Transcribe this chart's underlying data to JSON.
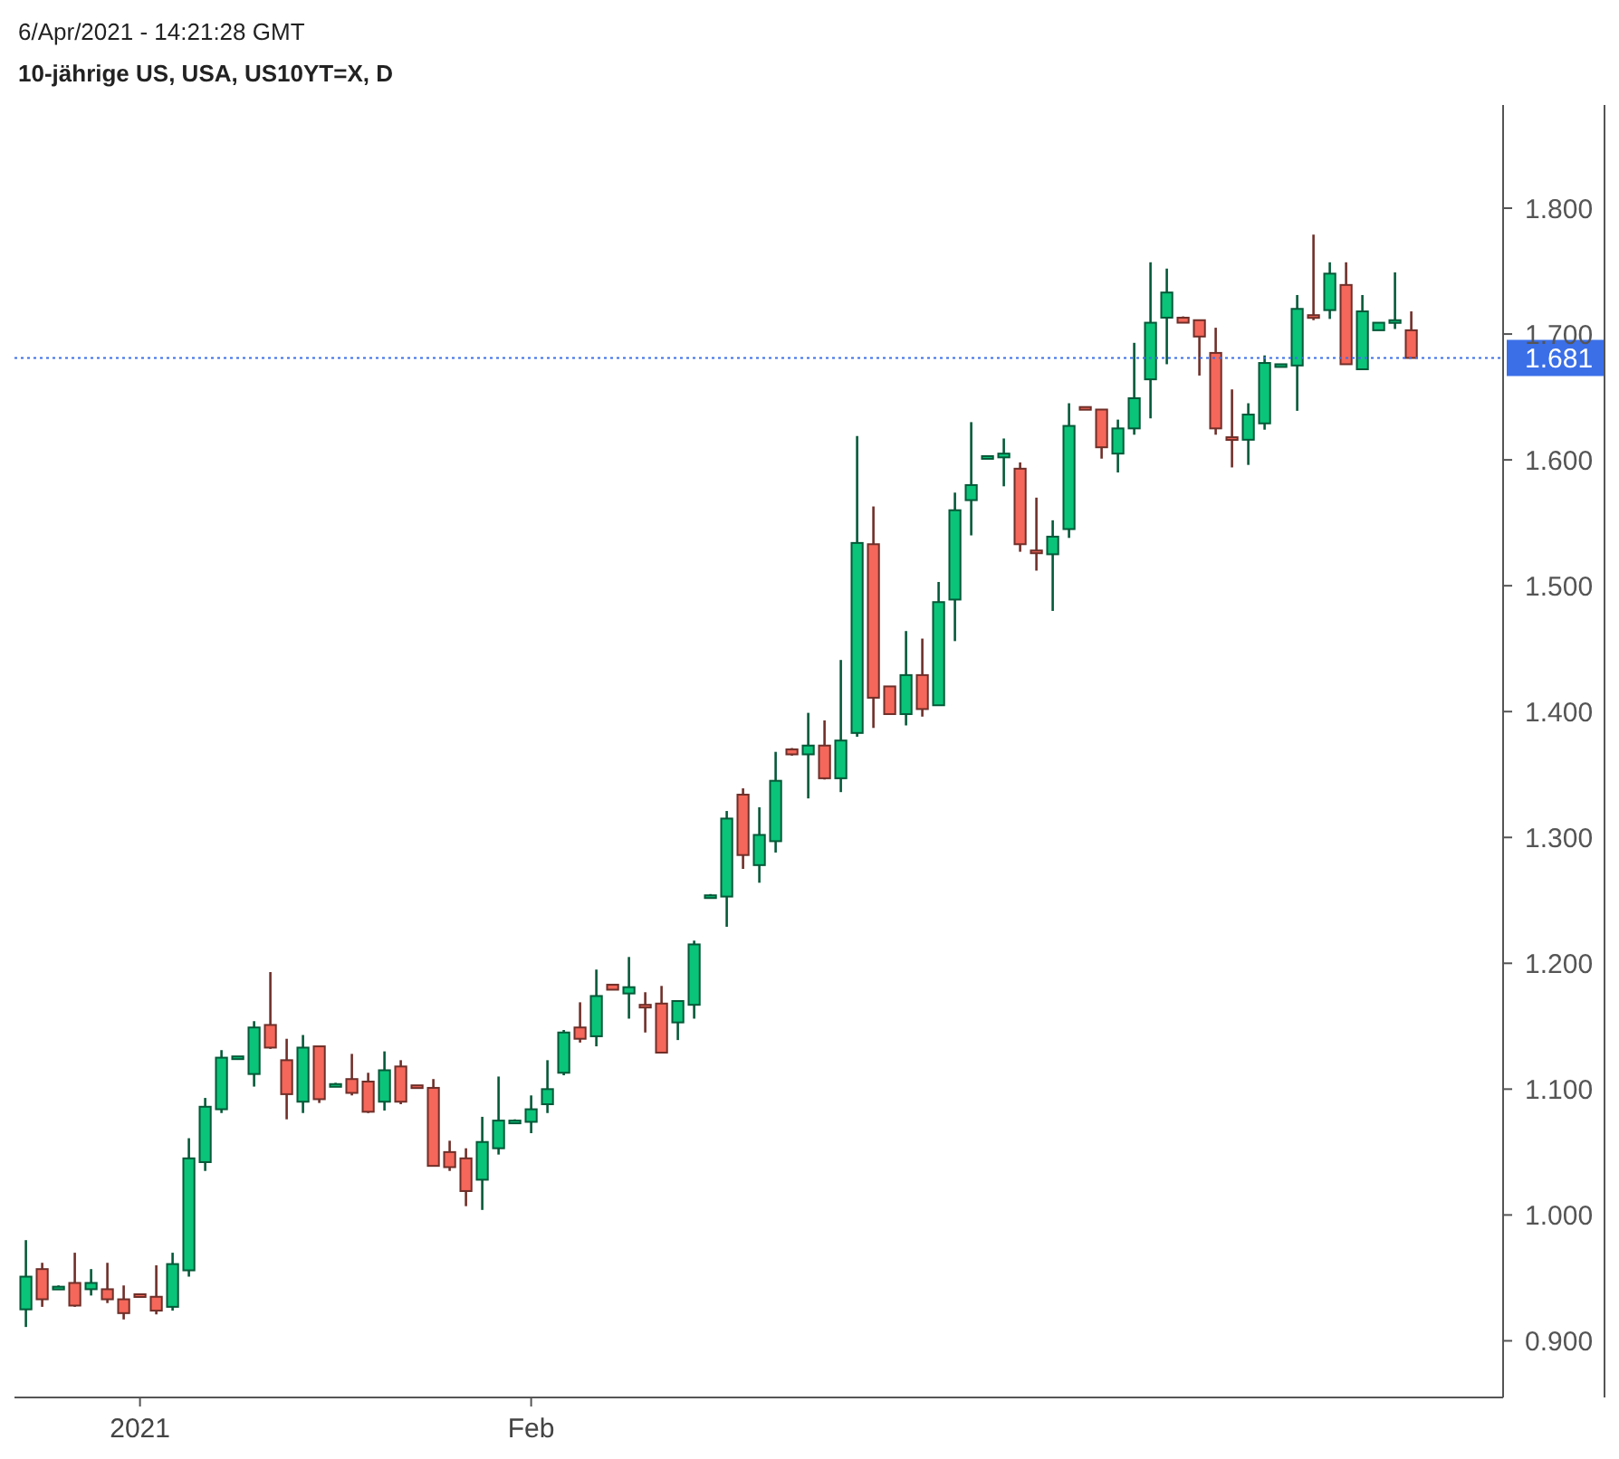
{
  "chart_data": {
    "type": "candlestick",
    "title": "10-jährige US, USA, US10YT=X, D",
    "annotations": [
      "6/Apr/2021 - 14:21:28 GMT"
    ],
    "categories": [
      null,
      null,
      null,
      null,
      null,
      null,
      null,
      "2021",
      null,
      null,
      null,
      null,
      null,
      null,
      null,
      null,
      null,
      null,
      null,
      null,
      null,
      null,
      null,
      null,
      null,
      null,
      null,
      null,
      null,
      null,
      null,
      "Feb",
      null,
      null,
      null,
      null,
      null,
      null,
      null,
      null,
      null,
      null,
      null,
      null,
      null,
      null,
      null,
      null,
      null,
      null,
      null,
      null,
      null,
      null,
      null,
      null,
      null,
      null,
      null,
      null,
      null,
      null,
      null,
      null,
      null,
      null,
      null,
      null,
      null,
      null,
      null,
      null,
      null,
      null,
      null,
      null,
      null,
      null,
      null,
      null,
      null,
      null,
      null,
      null,
      null,
      null
    ],
    "ohlc": [
      [
        0.925,
        0.98,
        0.911,
        0.951
      ],
      [
        0.957,
        0.962,
        0.927,
        0.933
      ],
      [
        0.942,
        0.944,
        0.941,
        0.943
      ],
      [
        0.946,
        0.97,
        0.927,
        0.928
      ],
      [
        0.941,
        0.957,
        0.936,
        0.946
      ],
      [
        0.941,
        0.962,
        0.93,
        0.933
      ],
      [
        0.933,
        0.944,
        0.917,
        0.922
      ],
      [
        0.937,
        0.937,
        0.936,
        0.936
      ],
      [
        0.935,
        0.96,
        0.921,
        0.924
      ],
      [
        0.927,
        0.97,
        0.924,
        0.961
      ],
      [
        0.956,
        1.061,
        0.951,
        1.045
      ],
      [
        1.042,
        1.093,
        1.035,
        1.086
      ],
      [
        1.084,
        1.131,
        1.081,
        1.125
      ],
      [
        1.125,
        1.126,
        1.125,
        1.126
      ],
      [
        1.112,
        1.154,
        1.102,
        1.149
      ],
      [
        1.151,
        1.193,
        1.132,
        1.133
      ],
      [
        1.123,
        1.14,
        1.076,
        1.096
      ],
      [
        1.09,
        1.143,
        1.081,
        1.133
      ],
      [
        1.134,
        1.134,
        1.089,
        1.092
      ],
      [
        1.103,
        1.105,
        1.103,
        1.104
      ],
      [
        1.108,
        1.128,
        1.095,
        1.097
      ],
      [
        1.106,
        1.113,
        1.081,
        1.082
      ],
      [
        1.09,
        1.13,
        1.083,
        1.115
      ],
      [
        1.118,
        1.123,
        1.088,
        1.09
      ],
      [
        1.103,
        1.103,
        1.101,
        1.102
      ],
      [
        1.101,
        1.108,
        1.039,
        1.039
      ],
      [
        1.05,
        1.059,
        1.035,
        1.038
      ],
      [
        1.045,
        1.053,
        1.007,
        1.019
      ],
      [
        1.028,
        1.078,
        1.004,
        1.058
      ],
      [
        1.053,
        1.11,
        1.048,
        1.075
      ],
      [
        1.074,
        1.076,
        1.073,
        1.075
      ],
      [
        1.074,
        1.095,
        1.065,
        1.084
      ],
      [
        1.088,
        1.123,
        1.081,
        1.1
      ],
      [
        1.113,
        1.147,
        1.111,
        1.145
      ],
      [
        1.149,
        1.169,
        1.137,
        1.14
      ],
      [
        1.142,
        1.195,
        1.134,
        1.174
      ],
      [
        1.183,
        1.183,
        1.179,
        1.179
      ],
      [
        1.176,
        1.205,
        1.156,
        1.181
      ],
      [
        1.167,
        1.177,
        1.145,
        1.166
      ],
      [
        1.168,
        1.182,
        1.129,
        1.129
      ],
      [
        1.153,
        1.17,
        1.139,
        1.17
      ],
      [
        1.167,
        1.218,
        1.156,
        1.215
      ],
      [
        1.253,
        1.255,
        1.253,
        1.254
      ],
      [
        1.253,
        1.321,
        1.229,
        1.315
      ],
      [
        1.334,
        1.339,
        1.275,
        1.286
      ],
      [
        1.278,
        1.324,
        1.264,
        1.302
      ],
      [
        1.297,
        1.368,
        1.288,
        1.345
      ],
      [
        1.37,
        1.371,
        1.365,
        1.366
      ],
      [
        1.366,
        1.399,
        1.331,
        1.373
      ],
      [
        1.373,
        1.393,
        1.346,
        1.347
      ],
      [
        1.347,
        1.441,
        1.336,
        1.377
      ],
      [
        1.383,
        1.619,
        1.38,
        1.534
      ],
      [
        1.533,
        1.563,
        1.387,
        1.411
      ],
      [
        1.42,
        1.42,
        1.398,
        1.398
      ],
      [
        1.398,
        1.464,
        1.389,
        1.429
      ],
      [
        1.429,
        1.458,
        1.396,
        1.402
      ],
      [
        1.405,
        1.503,
        1.405,
        1.487
      ],
      [
        1.489,
        1.574,
        1.456,
        1.56
      ],
      [
        1.568,
        1.63,
        1.54,
        1.58
      ],
      [
        1.602,
        1.603,
        1.602,
        1.603
      ],
      [
        1.602,
        1.617,
        1.579,
        1.605
      ],
      [
        1.593,
        1.598,
        1.527,
        1.533
      ],
      [
        1.528,
        1.57,
        1.512,
        1.527
      ],
      [
        1.525,
        1.552,
        1.48,
        1.539
      ],
      [
        1.545,
        1.645,
        1.538,
        1.627
      ],
      [
        1.642,
        1.642,
        1.641,
        1.641
      ],
      [
        1.64,
        1.64,
        1.601,
        1.61
      ],
      [
        1.605,
        1.632,
        1.59,
        1.625
      ],
      [
        1.625,
        1.693,
        1.62,
        1.649
      ],
      [
        1.664,
        1.757,
        1.633,
        1.709
      ],
      [
        1.713,
        1.752,
        1.676,
        1.733
      ],
      [
        1.713,
        1.714,
        1.709,
        1.709
      ],
      [
        1.711,
        1.711,
        1.667,
        1.698
      ],
      [
        1.685,
        1.705,
        1.62,
        1.625
      ],
      [
        1.618,
        1.656,
        1.594,
        1.617
      ],
      [
        1.616,
        1.645,
        1.596,
        1.636
      ],
      [
        1.629,
        1.683,
        1.624,
        1.677
      ],
      [
        1.675,
        1.676,
        1.675,
        1.676
      ],
      [
        1.675,
        1.731,
        1.639,
        1.72
      ],
      [
        1.715,
        1.779,
        1.711,
        1.714
      ],
      [
        1.719,
        1.757,
        1.712,
        1.748
      ],
      [
        1.739,
        1.757,
        1.676,
        1.676
      ],
      [
        1.672,
        1.731,
        1.672,
        1.718
      ],
      [
        1.703,
        1.709,
        1.703,
        1.709
      ],
      [
        1.71,
        1.749,
        1.704,
        1.711
      ],
      [
        1.703,
        1.718,
        1.681,
        1.681
      ]
    ],
    "colors": [
      "#0ac47a",
      "#f4675a",
      "#0ac47a",
      "#f4675a",
      "#0ac47a",
      "#f4675a",
      "#f4675a",
      "#f4675a",
      "#f4675a",
      "#0ac47a",
      "#0ac47a",
      "#0ac47a",
      "#0ac47a",
      "#0ac47a",
      "#0ac47a",
      "#f4675a",
      "#f4675a",
      "#0ac47a",
      "#f4675a",
      "#0ac47a",
      "#f4675a",
      "#f4675a",
      "#0ac47a",
      "#f4675a",
      "#f4675a",
      "#f4675a",
      "#f4675a",
      "#f4675a",
      "#0ac47a",
      "#0ac47a",
      "#0ac47a",
      "#0ac47a",
      "#0ac47a",
      "#0ac47a",
      "#f4675a",
      "#0ac47a",
      "#f4675a",
      "#0ac47a",
      "#f4675a",
      "#f4675a",
      "#0ac47a",
      "#0ac47a",
      "#0ac47a",
      "#0ac47a",
      "#f4675a",
      "#0ac47a",
      "#0ac47a",
      "#f4675a",
      "#0ac47a",
      "#f4675a",
      "#0ac47a",
      "#0ac47a",
      "#f4675a",
      "#f4675a",
      "#0ac47a",
      "#f4675a",
      "#0ac47a",
      "#0ac47a",
      "#0ac47a",
      "#0ac47a",
      "#0ac47a",
      "#f4675a",
      "#f4675a",
      "#0ac47a",
      "#0ac47a",
      "#f4675a",
      "#f4675a",
      "#0ac47a",
      "#0ac47a",
      "#0ac47a",
      "#0ac47a",
      "#f4675a",
      "#f4675a",
      "#f4675a",
      "#f4675a",
      "#0ac47a",
      "#0ac47a",
      "#0ac47a",
      "#0ac47a",
      "#f4675a",
      "#0ac47a",
      "#f4675a",
      "#0ac47a",
      "#0ac47a",
      "#0ac47a",
      "#f4675a"
    ],
    "ylim": [
      0.855,
      1.882
    ],
    "yticks": [
      {
        "value": 0.9,
        "label": "0.900"
      },
      {
        "value": 1.0,
        "label": "1.000"
      },
      {
        "value": 1.1,
        "label": "1.100"
      },
      {
        "value": 1.2,
        "label": "1.200"
      },
      {
        "value": 1.3,
        "label": "1.300"
      },
      {
        "value": 1.4,
        "label": "1.400"
      },
      {
        "value": 1.5,
        "label": "1.500"
      },
      {
        "value": 1.6,
        "label": "1.600"
      },
      {
        "value": 1.7,
        "label": "1.700"
      },
      {
        "value": 1.8,
        "label": "1.800"
      }
    ],
    "ref_lines": [
      {
        "axis": "y",
        "value": 1.681,
        "label": "1.681",
        "color": "#3b6fe8",
        "line_style": "dotted"
      }
    ]
  }
}
